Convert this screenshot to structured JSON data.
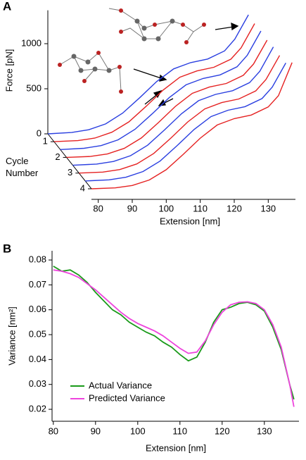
{
  "chart_data": [
    {
      "type": "waterfall",
      "panel_label": "A",
      "ylabel": "Force [pN]",
      "xlabel": "Extension [nm]",
      "zlabel": "Cycle Number",
      "xlim": [
        78,
        138
      ],
      "xticks": [
        80,
        90,
        100,
        110,
        120,
        130
      ],
      "ylim": [
        0,
        1370
      ],
      "yticks": [
        0,
        500,
        1000
      ],
      "zticks": [
        1,
        2,
        3,
        4
      ],
      "x": [
        78,
        85,
        90,
        95,
        100,
        105,
        110,
        115,
        120,
        125,
        130,
        133,
        137
      ],
      "series": [
        {
          "color": "#2a3fe0",
          "values": [
            0,
            15,
            45,
            110,
            230,
            400,
            580,
            720,
            790,
            830,
            920,
            1050,
            1320
          ]
        },
        {
          "color": "#e52222",
          "values": [
            0,
            12,
            40,
            105,
            220,
            390,
            570,
            715,
            785,
            825,
            915,
            1040,
            1310
          ]
        },
        {
          "color": "#2a3fe0",
          "values": [
            0,
            14,
            44,
            108,
            225,
            395,
            575,
            718,
            788,
            828,
            918,
            1045,
            1315
          ]
        },
        {
          "color": "#e52222",
          "values": [
            0,
            10,
            38,
            100,
            215,
            385,
            565,
            710,
            780,
            820,
            910,
            1035,
            1300
          ]
        },
        {
          "color": "#2a3fe0",
          "values": [
            0,
            13,
            42,
            106,
            222,
            392,
            572,
            716,
            786,
            826,
            916,
            1042,
            1312
          ]
        },
        {
          "color": "#e52222",
          "values": [
            0,
            11,
            39,
            102,
            218,
            388,
            568,
            712,
            782,
            822,
            912,
            1038,
            1305
          ]
        },
        {
          "color": "#2a3fe0",
          "values": [
            0,
            12,
            41,
            104,
            220,
            390,
            570,
            714,
            784,
            824,
            914,
            1040,
            1308
          ]
        },
        {
          "color": "#e52222",
          "values": [
            0,
            10,
            37,
            98,
            212,
            382,
            562,
            708,
            778,
            818,
            908,
            1032,
            1400
          ]
        }
      ]
    },
    {
      "type": "line",
      "panel_label": "B",
      "ylabel": "Variance [nm²]",
      "xlabel": "Extension [nm]",
      "xlim": [
        79.7,
        138.2
      ],
      "xticks": [
        80,
        90,
        100,
        110,
        120,
        130
      ],
      "ylim": [
        0.0152,
        0.0837
      ],
      "yticks": [
        0.02,
        0.03,
        0.04,
        0.05,
        0.06,
        0.07,
        0.08
      ],
      "legend": "lower left",
      "x": [
        80,
        82,
        84,
        86,
        88,
        90,
        92,
        94,
        96,
        98,
        100,
        102,
        104,
        106,
        108,
        110,
        112,
        114,
        116,
        118,
        120,
        122,
        124,
        126,
        128,
        130,
        132,
        134,
        136,
        137
      ],
      "series": [
        {
          "name": "Actual Variance",
          "color": "#1a9a1a",
          "values": [
            0.0775,
            0.0755,
            0.076,
            0.074,
            0.071,
            0.067,
            0.0635,
            0.06,
            0.058,
            0.055,
            0.053,
            0.051,
            0.0495,
            0.047,
            0.045,
            0.042,
            0.0395,
            0.041,
            0.047,
            0.055,
            0.06,
            0.061,
            0.0625,
            0.063,
            0.062,
            0.0595,
            0.053,
            0.044,
            0.03,
            0.024
          ]
        },
        {
          "name": "Predicted Variance",
          "color": "#ee44dd",
          "values": [
            0.076,
            0.0755,
            0.0745,
            0.073,
            0.0705,
            0.068,
            0.065,
            0.062,
            0.059,
            0.0565,
            0.0545,
            0.053,
            0.0515,
            0.0495,
            0.047,
            0.0445,
            0.0425,
            0.043,
            0.0475,
            0.054,
            0.059,
            0.062,
            0.063,
            0.0632,
            0.0625,
            0.06,
            0.054,
            0.045,
            0.03,
            0.021
          ]
        }
      ]
    }
  ]
}
